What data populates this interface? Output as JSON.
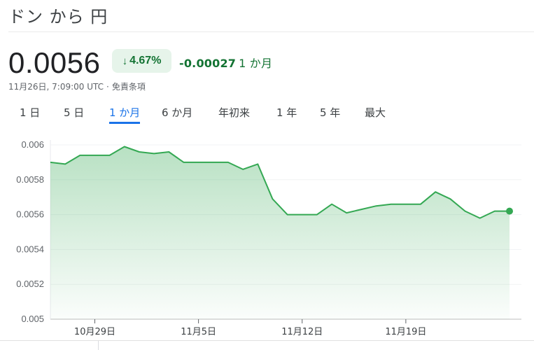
{
  "header": {
    "title": "ドン から 円"
  },
  "quote": {
    "price": "0.0056",
    "change_percent": "4.67%",
    "change_direction": "down",
    "change_abs": "-0.00027",
    "change_period": "1 か月",
    "timestamp": "11月26日, 7:09:00 UTC",
    "separator": "·",
    "disclaimer": "免責条項"
  },
  "tabs": [
    {
      "label": "1 日",
      "active": false
    },
    {
      "label": "5 日",
      "active": false
    },
    {
      "label": "1 か月",
      "active": true
    },
    {
      "label": "6 か月",
      "active": false
    },
    {
      "label": "年初来",
      "active": false
    },
    {
      "label": "1 年",
      "active": false
    },
    {
      "label": "5 年",
      "active": false
    },
    {
      "label": "最大",
      "active": false
    }
  ],
  "colors": {
    "line": "#34a853",
    "positive_bg": "#e6f4ea",
    "positive_text": "#137333",
    "tab_active": "#1a73e8"
  },
  "chart_data": {
    "type": "area",
    "ylim": [
      0.005,
      0.0061
    ],
    "ytick_labels": [
      "0.006",
      "0.0058",
      "0.0056",
      "0.0054",
      "0.0052",
      "0.005"
    ],
    "yticks": [
      0.006,
      0.0058,
      0.0056,
      0.0054,
      0.0052,
      0.005
    ],
    "xtick_labels": [
      "10月29日",
      "11月5日",
      "11月12日",
      "11月19日"
    ],
    "xtick_index": [
      3,
      10,
      17,
      24
    ],
    "x": [
      "10月26日",
      "10月27日",
      "10月28日",
      "10月29日",
      "10月30日",
      "10月31日",
      "11月1日",
      "11月2日",
      "11月3日",
      "11月4日",
      "11月5日",
      "11月6日",
      "11月7日",
      "11月8日",
      "11月9日",
      "11月10日",
      "11月11日",
      "11月12日",
      "11月13日",
      "11月14日",
      "11月15日",
      "11月16日",
      "11月17日",
      "11月18日",
      "11月19日",
      "11月20日",
      "11月21日",
      "11月22日",
      "11月23日",
      "11月24日",
      "11月25日",
      "11月26日"
    ],
    "values": [
      0.0059,
      0.00589,
      0.00594,
      0.00594,
      0.00594,
      0.00599,
      0.00596,
      0.00595,
      0.00596,
      0.0059,
      0.0059,
      0.0059,
      0.0059,
      0.00586,
      0.00589,
      0.00569,
      0.0056,
      0.0056,
      0.0056,
      0.00566,
      0.00561,
      0.00563,
      0.00565,
      0.00566,
      0.00566,
      0.00566,
      0.00573,
      0.00569,
      0.00562,
      0.00558,
      0.00562,
      0.00562
    ],
    "grid": true
  }
}
